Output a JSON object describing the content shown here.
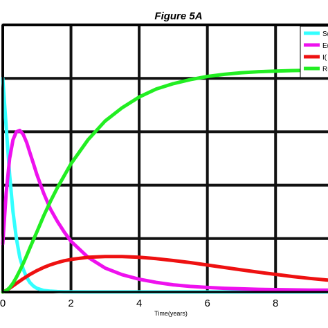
{
  "chart_data": {
    "type": "line",
    "title": "Figure 5A",
    "xlabel": "Time(years)",
    "ylabel": "",
    "xlim": [
      0,
      9.7
    ],
    "ylim": [
      0,
      1
    ],
    "grid": true,
    "legend_placement": "top-right",
    "x_ticks": [
      "0",
      "2",
      "4",
      "6",
      "8"
    ],
    "x_tick_values": [
      0,
      2,
      4,
      6,
      8
    ],
    "y_grid_values": [
      0,
      0.2,
      0.4,
      0.6,
      0.8,
      1
    ],
    "x": [
      0,
      0.1,
      0.2,
      0.3,
      0.4,
      0.5,
      0.6,
      0.7,
      0.8,
      0.9,
      1,
      1.2,
      1.4,
      1.6,
      1.8,
      2,
      2.5,
      3,
      3.5,
      4,
      4.5,
      5,
      5.5,
      6,
      6.5,
      7,
      7.5,
      8,
      8.5,
      9,
      9.5,
      9.7
    ],
    "series": [
      {
        "name": "S(",
        "color": "#33ffff",
        "values": [
          0.8,
          0.62,
          0.44,
          0.3,
          0.2,
          0.13,
          0.085,
          0.055,
          0.035,
          0.022,
          0.014,
          0.006,
          0.003,
          0.0015,
          0.0008,
          0.0005,
          0.0003,
          0.0002,
          0.0002,
          0.0002,
          0.0002,
          0.0002,
          0.0002,
          0.0002,
          0.0002,
          0.0002,
          0.0002,
          0.0002,
          0.0002,
          0.0002,
          0.0002,
          0.0002
        ]
      },
      {
        "name": "E(",
        "color": "#ee11ee",
        "values": [
          0.18,
          0.37,
          0.5,
          0.57,
          0.6,
          0.605,
          0.59,
          0.56,
          0.52,
          0.48,
          0.44,
          0.37,
          0.31,
          0.265,
          0.225,
          0.19,
          0.13,
          0.09,
          0.065,
          0.048,
          0.036,
          0.027,
          0.021,
          0.017,
          0.014,
          0.012,
          0.01,
          0.009,
          0.008,
          0.007,
          0.007,
          0.007
        ]
      },
      {
        "name": "I(",
        "color": "#ee1111",
        "values": [
          0,
          0.006,
          0.014,
          0.023,
          0.032,
          0.041,
          0.05,
          0.058,
          0.066,
          0.073,
          0.08,
          0.092,
          0.102,
          0.11,
          0.117,
          0.122,
          0.13,
          0.133,
          0.133,
          0.13,
          0.125,
          0.118,
          0.11,
          0.101,
          0.092,
          0.083,
          0.074,
          0.066,
          0.058,
          0.051,
          0.045,
          0.043
        ]
      },
      {
        "name": "R(",
        "color": "#22ee22",
        "values": [
          0,
          0.005,
          0.016,
          0.033,
          0.055,
          0.08,
          0.107,
          0.136,
          0.166,
          0.196,
          0.225,
          0.285,
          0.34,
          0.39,
          0.435,
          0.48,
          0.57,
          0.64,
          0.69,
          0.73,
          0.76,
          0.78,
          0.795,
          0.807,
          0.815,
          0.821,
          0.825,
          0.827,
          0.829,
          0.83,
          0.831,
          0.831
        ]
      }
    ]
  }
}
